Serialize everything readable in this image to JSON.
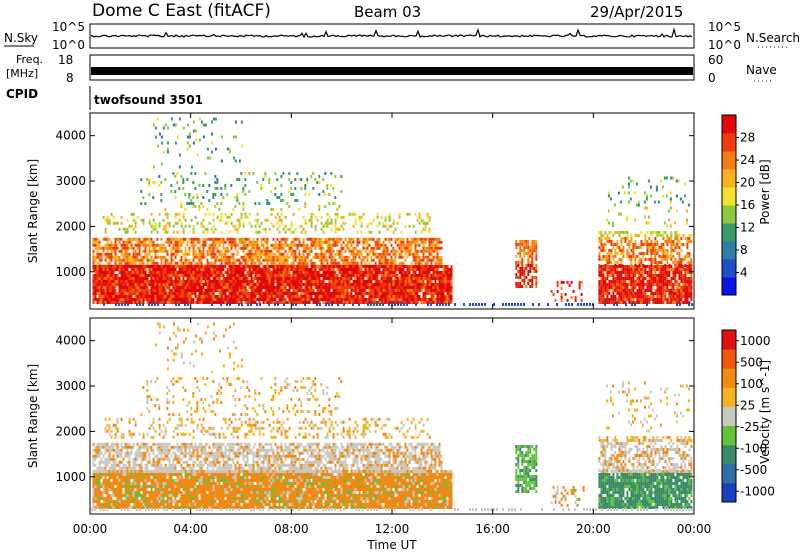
{
  "header": {
    "site": "Dome C East (fitACF)",
    "beam": "Beam 03",
    "date": "29/Apr/2015"
  },
  "noise_panel": {
    "left_label": "N.Sky",
    "left_ticks": [
      "10^5",
      "10^0"
    ],
    "right_ticks": [
      "10^5",
      "10^0"
    ],
    "right_label": "N.Search"
  },
  "freq_panel": {
    "left_label_1": "Freq.",
    "left_label_2": "[MHz]",
    "left_ticks": [
      "18",
      "8"
    ],
    "right_ticks": [
      "60",
      "0"
    ],
    "right_label": "Nave"
  },
  "cpid_panel": {
    "label": "CPID",
    "program": "twofsound 3501"
  },
  "colors": {
    "power": [
      "#0a14e6",
      "#1f4fc4",
      "#2a7ea8",
      "#3a9a6a",
      "#8bc93a",
      "#f2e02a",
      "#f5b21c",
      "#f57d12",
      "#f03c0a",
      "#e00808"
    ],
    "velocity": [
      "#1a3fbf",
      "#2f6fa8",
      "#3a8a6a",
      "#62c23a",
      "#c8c8c0",
      "#f5b21c",
      "#f08a12",
      "#f05a0a",
      "#e01010"
    ]
  },
  "chart_data": [
    {
      "type": "heatmap",
      "name": "power",
      "ylabel": "Slant Range [km]",
      "yticks": [
        "1000",
        "2000",
        "3000",
        "4000"
      ],
      "ylim": [
        180,
        4500
      ],
      "xlim": [
        0,
        24
      ],
      "colorbar_label": "Power [dB]",
      "colorbar_ticks": [
        "4",
        "8",
        "12",
        "16",
        "20",
        "24",
        "28"
      ],
      "colorbar_range": [
        0,
        32
      ]
    },
    {
      "type": "heatmap",
      "name": "velocity",
      "ylabel": "Slant Range [km]",
      "yticks": [
        "1000",
        "2000",
        "3000",
        "4000"
      ],
      "ylim": [
        180,
        4500
      ],
      "xlim": [
        0,
        24
      ],
      "colorbar_label": "Velocity [m s^-1]",
      "colorbar_ticks": [
        "1000",
        "500",
        "100",
        "25",
        "-25",
        "-100",
        "-500",
        "-1000"
      ]
    }
  ],
  "xaxis": {
    "ticks": [
      "00:00",
      "04:00",
      "08:00",
      "12:00",
      "16:00",
      "20:00",
      "00:00"
    ],
    "label": "Time UT"
  }
}
